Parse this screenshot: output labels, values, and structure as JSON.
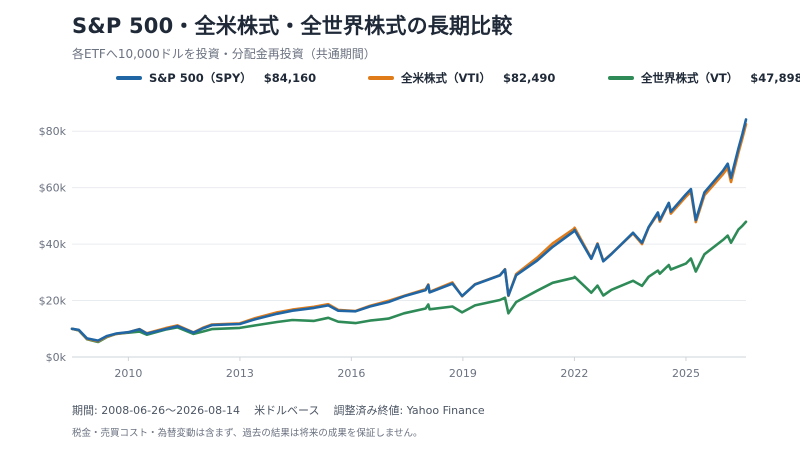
{
  "header": {
    "title": "S&P 500・全米株式・全世界株式の長期比較",
    "subtitle": "各ETFへ10,000ドルを投資・分配金再投資（共通期間）"
  },
  "legend": [
    {
      "label": "S&P 500（SPY）",
      "value": "$84,160",
      "color": "#2166a4"
    },
    {
      "label": "全米株式（VTI）",
      "value": "$82,490",
      "color": "#e07b1a"
    },
    {
      "label": "全世界株式（VT）",
      "value": "$47,898",
      "color": "#2e8b57"
    }
  ],
  "footer": {
    "period": "期間: 2008-06-26〜2026-08-14",
    "currency": "米ドルベース",
    "source": "調整済み終値: Yahoo Finance",
    "disclaimer": "税金・売買コスト・為替変動は含まず、過去の結果は将来の成果を保証しません。"
  },
  "chart_data": {
    "type": "line",
    "x_label": "",
    "y_label": "",
    "xlim": [
      "2008-06-26",
      "2026-08-14"
    ],
    "ylim": [
      0,
      90000
    ],
    "x_ticks": [
      2010,
      2013,
      2016,
      2019,
      2022,
      2025
    ],
    "y_ticks": [
      0,
      20000,
      40000,
      60000,
      80000
    ],
    "y_tick_labels": [
      "$0k",
      "$20k",
      "$40k",
      "$60k",
      "$80k"
    ],
    "grid": "horizontal",
    "legend_position": "top",
    "series": [
      {
        "name": "S&P 500（SPY）",
        "color": "#2166a4",
        "points": [
          [
            "2008-06-26",
            10000
          ],
          [
            "2008-09-01",
            9600
          ],
          [
            "2008-11-20",
            6600
          ],
          [
            "2009-03-09",
            5800
          ],
          [
            "2009-06-01",
            7400
          ],
          [
            "2009-09-01",
            8300
          ],
          [
            "2010-01-01",
            8800
          ],
          [
            "2010-04-20",
            9800
          ],
          [
            "2010-07-01",
            8300
          ],
          [
            "2010-12-31",
            9900
          ],
          [
            "2011-04-30",
            10900
          ],
          [
            "2011-10-03",
            8600
          ],
          [
            "2011-12-31",
            10100
          ],
          [
            "2012-04-01",
            11300
          ],
          [
            "2012-12-31",
            11700
          ],
          [
            "2013-06-01",
            13400
          ],
          [
            "2013-12-31",
            15300
          ],
          [
            "2014-06-01",
            16400
          ],
          [
            "2014-12-31",
            17400
          ],
          [
            "2015-05-20",
            18300
          ],
          [
            "2015-08-25",
            16400
          ],
          [
            "2016-02-11",
            16200
          ],
          [
            "2016-07-01",
            17900
          ],
          [
            "2016-12-31",
            19500
          ],
          [
            "2017-06-01",
            21500
          ],
          [
            "2017-12-31",
            23700
          ],
          [
            "2018-01-26",
            25500
          ],
          [
            "2018-02-08",
            22900
          ],
          [
            "2018-09-20",
            26000
          ],
          [
            "2018-12-24",
            21600
          ],
          [
            "2019-04-30",
            25700
          ],
          [
            "2019-12-31",
            28900
          ],
          [
            "2020-02-19",
            31000
          ],
          [
            "2020-03-23",
            21800
          ],
          [
            "2020-06-08",
            29000
          ],
          [
            "2020-12-31",
            34200
          ],
          [
            "2021-06-01",
            39000
          ],
          [
            "2021-12-31",
            44600
          ],
          [
            "2022-01-03",
            45000
          ],
          [
            "2022-06-16",
            34800
          ],
          [
            "2022-08-16",
            40000
          ],
          [
            "2022-10-12",
            33900
          ],
          [
            "2022-12-31",
            36500
          ],
          [
            "2023-07-31",
            44000
          ],
          [
            "2023-10-27",
            40500
          ],
          [
            "2023-12-31",
            46000
          ],
          [
            "2024-03-31",
            51200
          ],
          [
            "2024-04-19",
            48500
          ],
          [
            "2024-07-16",
            54600
          ],
          [
            "2024-08-05",
            51500
          ],
          [
            "2024-12-31",
            57600
          ],
          [
            "2025-02-19",
            59500
          ],
          [
            "2025-04-08",
            48500
          ],
          [
            "2025-07-01",
            58300
          ],
          [
            "2025-12-31",
            66000
          ],
          [
            "2026-02-15",
            68500
          ],
          [
            "2026-03-20",
            63500
          ],
          [
            "2026-06-01",
            74000
          ],
          [
            "2026-07-10",
            79000
          ],
          [
            "2026-08-14",
            84160
          ]
        ]
      },
      {
        "name": "全米株式（VTI）",
        "color": "#e07b1a",
        "points": [
          [
            "2008-06-26",
            10000
          ],
          [
            "2008-09-01",
            9500
          ],
          [
            "2008-11-20",
            6400
          ],
          [
            "2009-03-09",
            5600
          ],
          [
            "2009-06-01",
            7200
          ],
          [
            "2009-09-01",
            8200
          ],
          [
            "2010-01-01",
            8800
          ],
          [
            "2010-04-20",
            9900
          ],
          [
            "2010-07-01",
            8400
          ],
          [
            "2010-12-31",
            10200
          ],
          [
            "2011-04-30",
            11200
          ],
          [
            "2011-10-03",
            8700
          ],
          [
            "2011-12-31",
            10300
          ],
          [
            "2012-04-01",
            11500
          ],
          [
            "2012-12-31",
            11900
          ],
          [
            "2013-06-01",
            13800
          ],
          [
            "2013-12-31",
            15800
          ],
          [
            "2014-06-01",
            16800
          ],
          [
            "2014-12-31",
            17800
          ],
          [
            "2015-05-20",
            18700
          ],
          [
            "2015-08-25",
            16700
          ],
          [
            "2016-02-11",
            16300
          ],
          [
            "2016-07-01",
            18100
          ],
          [
            "2016-12-31",
            19900
          ],
          [
            "2017-06-01",
            21700
          ],
          [
            "2017-12-31",
            24000
          ],
          [
            "2018-01-26",
            25700
          ],
          [
            "2018-02-08",
            23100
          ],
          [
            "2018-09-20",
            26400
          ],
          [
            "2018-12-24",
            21500
          ],
          [
            "2019-04-30",
            25800
          ],
          [
            "2019-12-31",
            29000
          ],
          [
            "2020-02-19",
            31100
          ],
          [
            "2020-03-23",
            21700
          ],
          [
            "2020-06-08",
            29400
          ],
          [
            "2020-12-31",
            35200
          ],
          [
            "2021-06-01",
            40200
          ],
          [
            "2021-12-31",
            45500
          ],
          [
            "2022-01-03",
            45800
          ],
          [
            "2022-06-16",
            35000
          ],
          [
            "2022-08-16",
            40200
          ],
          [
            "2022-10-12",
            34100
          ],
          [
            "2022-12-31",
            36600
          ],
          [
            "2023-07-31",
            43800
          ],
          [
            "2023-10-27",
            40000
          ],
          [
            "2023-12-31",
            45800
          ],
          [
            "2024-03-31",
            50700
          ],
          [
            "2024-04-19",
            48000
          ],
          [
            "2024-07-16",
            54500
          ],
          [
            "2024-08-05",
            50800
          ],
          [
            "2024-12-31",
            56800
          ],
          [
            "2025-02-19",
            58500
          ],
          [
            "2025-04-08",
            47800
          ],
          [
            "2025-07-01",
            57300
          ],
          [
            "2025-12-31",
            64800
          ],
          [
            "2026-02-15",
            67000
          ],
          [
            "2026-03-20",
            62000
          ],
          [
            "2026-06-01",
            72500
          ],
          [
            "2026-07-10",
            77500
          ],
          [
            "2026-08-14",
            82490
          ]
        ]
      },
      {
        "name": "全世界株式（VT）",
        "color": "#2e8b57",
        "points": [
          [
            "2008-06-26",
            10000
          ],
          [
            "2008-09-01",
            9400
          ],
          [
            "2008-11-20",
            6300
          ],
          [
            "2009-03-09",
            5300
          ],
          [
            "2009-06-01",
            7000
          ],
          [
            "2009-09-01",
            8200
          ],
          [
            "2010-01-01",
            8600
          ],
          [
            "2010-04-20",
            9000
          ],
          [
            "2010-07-01",
            7900
          ],
          [
            "2010-12-31",
            9700
          ],
          [
            "2011-04-30",
            10500
          ],
          [
            "2011-10-03",
            8200
          ],
          [
            "2011-12-31",
            9000
          ],
          [
            "2012-04-01",
            9900
          ],
          [
            "2012-12-31",
            10300
          ],
          [
            "2013-06-01",
            11200
          ],
          [
            "2013-12-31",
            12400
          ],
          [
            "2014-06-01",
            13100
          ],
          [
            "2014-12-31",
            12800
          ],
          [
            "2015-05-20",
            13900
          ],
          [
            "2015-08-25",
            12500
          ],
          [
            "2016-02-11",
            12000
          ],
          [
            "2016-07-01",
            12900
          ],
          [
            "2016-12-31",
            13600
          ],
          [
            "2017-06-01",
            15500
          ],
          [
            "2017-12-31",
            17200
          ],
          [
            "2018-01-26",
            18600
          ],
          [
            "2018-02-08",
            16900
          ],
          [
            "2018-09-20",
            17900
          ],
          [
            "2018-12-24",
            15800
          ],
          [
            "2019-04-30",
            18300
          ],
          [
            "2019-12-31",
            20200
          ],
          [
            "2020-02-19",
            21000
          ],
          [
            "2020-03-23",
            15500
          ],
          [
            "2020-06-08",
            19500
          ],
          [
            "2020-12-31",
            23500
          ],
          [
            "2021-06-01",
            26300
          ],
          [
            "2021-12-31",
            28100
          ],
          [
            "2022-01-03",
            28400
          ],
          [
            "2022-06-16",
            22800
          ],
          [
            "2022-08-16",
            25300
          ],
          [
            "2022-10-12",
            21800
          ],
          [
            "2022-12-31",
            23800
          ],
          [
            "2023-07-31",
            27000
          ],
          [
            "2023-10-27",
            25200
          ],
          [
            "2023-12-31",
            28400
          ],
          [
            "2024-03-31",
            30600
          ],
          [
            "2024-04-19",
            29500
          ],
          [
            "2024-07-16",
            32600
          ],
          [
            "2024-08-05",
            31000
          ],
          [
            "2024-12-31",
            33100
          ],
          [
            "2025-02-19",
            34900
          ],
          [
            "2025-04-08",
            30300
          ],
          [
            "2025-07-01",
            36400
          ],
          [
            "2025-12-31",
            41500
          ],
          [
            "2026-02-15",
            43000
          ],
          [
            "2026-03-20",
            40500
          ],
          [
            "2026-06-01",
            45200
          ],
          [
            "2026-07-10",
            46500
          ],
          [
            "2026-08-14",
            47898
          ]
        ]
      }
    ]
  }
}
